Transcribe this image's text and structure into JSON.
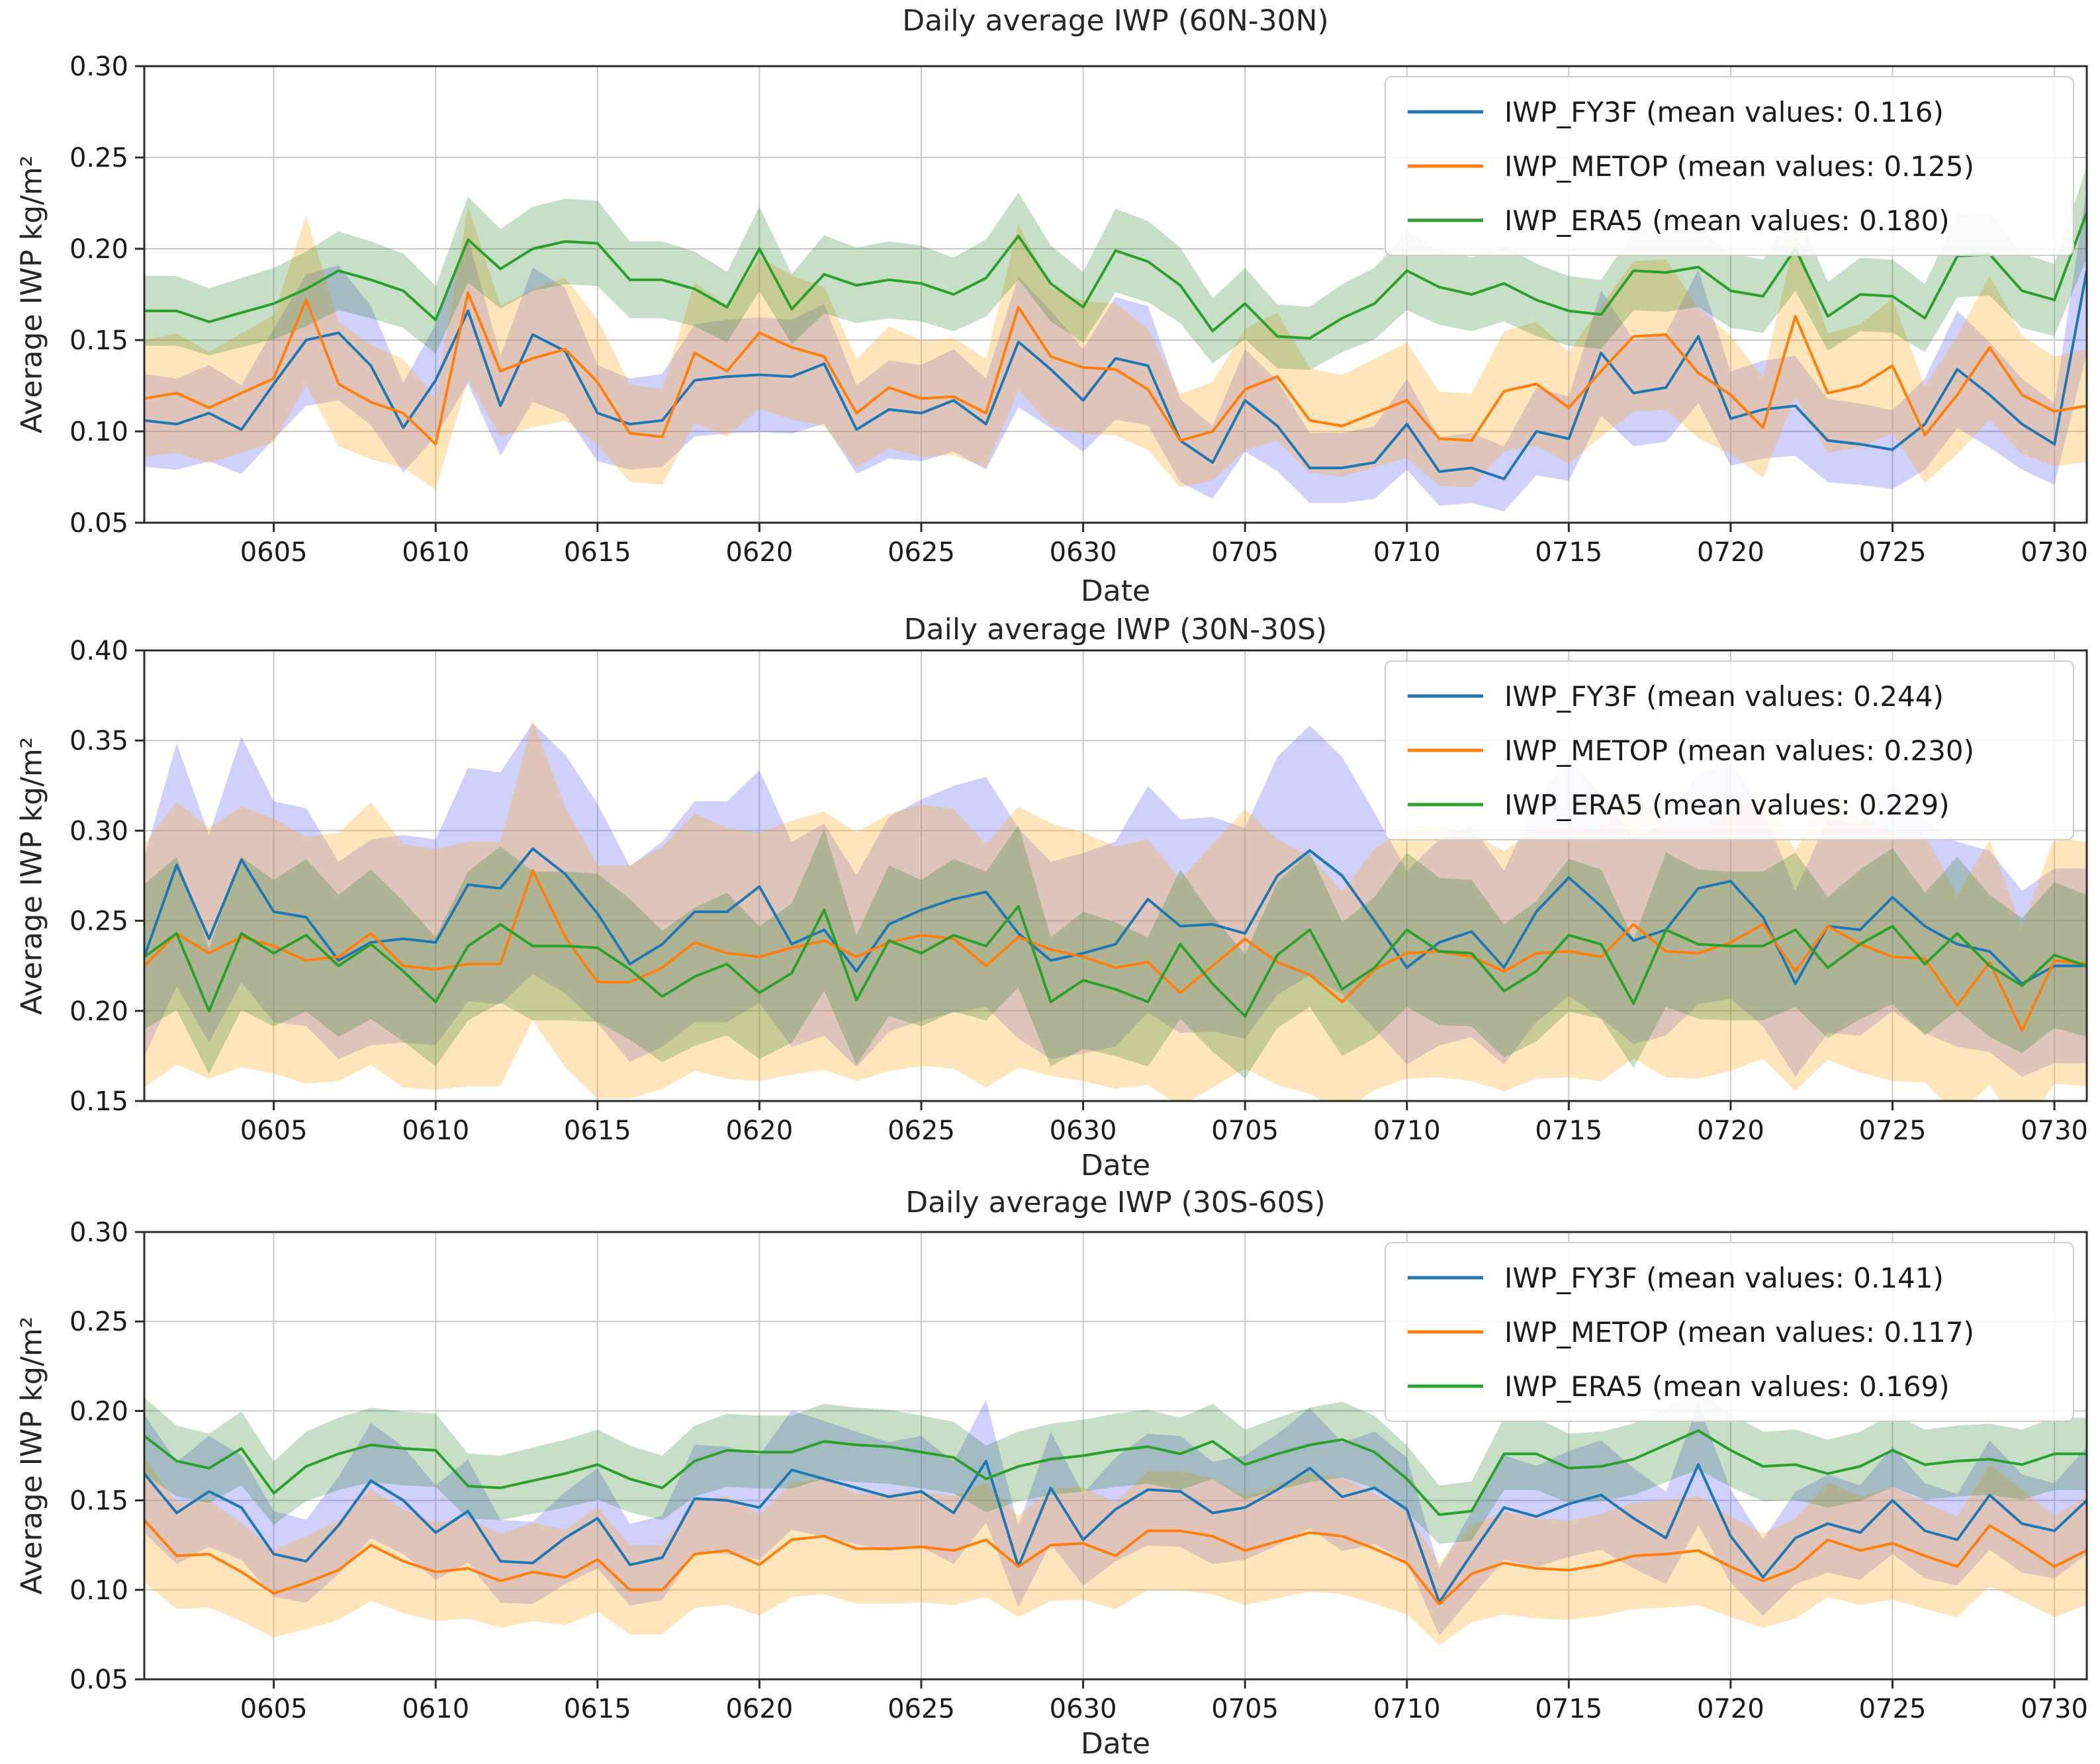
{
  "figure": {
    "background": "#ffffff",
    "xlabel": "Date",
    "ylabel": "Average IWP kg/m²"
  },
  "dates": [
    "0601",
    "0602",
    "0603",
    "0604",
    "0605",
    "0606",
    "0607",
    "0608",
    "0609",
    "0610",
    "0611",
    "0612",
    "0613",
    "0614",
    "0615",
    "0616",
    "0617",
    "0618",
    "0619",
    "0620",
    "0621",
    "0622",
    "0623",
    "0624",
    "0625",
    "0626",
    "0627",
    "0628",
    "0629",
    "0630",
    "0701",
    "0702",
    "0703",
    "0704",
    "0705",
    "0706",
    "0707",
    "0708",
    "0709",
    "0710",
    "0711",
    "0712",
    "0713",
    "0714",
    "0715",
    "0716",
    "0717",
    "0718",
    "0719",
    "0720",
    "0721",
    "0722",
    "0723",
    "0724",
    "0725",
    "0726",
    "0727",
    "0728",
    "0729",
    "0730",
    "0731"
  ],
  "x_ticks": [
    {
      "label": "0605",
      "day_index": 4
    },
    {
      "label": "0610",
      "day_index": 9
    },
    {
      "label": "0615",
      "day_index": 14
    },
    {
      "label": "0620",
      "day_index": 19
    },
    {
      "label": "0625",
      "day_index": 24
    },
    {
      "label": "0630",
      "day_index": 29
    },
    {
      "label": "0705",
      "day_index": 34
    },
    {
      "label": "0710",
      "day_index": 39
    },
    {
      "label": "0715",
      "day_index": 44
    },
    {
      "label": "0720",
      "day_index": 49
    },
    {
      "label": "0725",
      "day_index": 54
    },
    {
      "label": "0730",
      "day_index": 59
    }
  ],
  "chart_data": [
    {
      "type": "line",
      "title": "Daily average IWP (60N-30N)",
      "xlabel": "Date",
      "ylabel": "Average IWP kg/m²",
      "ylim": [
        0.05,
        0.3
      ],
      "ytick_labels": [
        "0.05",
        "0.10",
        "0.15",
        "0.20",
        "0.25",
        "0.30"
      ],
      "grid": true,
      "legend_position": "upper right",
      "series": [
        {
          "name": "IWP_FY3F",
          "label": "IWP_FY3F (mean values: 0.116)",
          "mean": 0.116,
          "color": "#1f77b4",
          "band_color": "rgba(80,80,245,0.27)",
          "band_ratio": 0.24,
          "values": [
            0.106,
            0.104,
            0.11,
            0.101,
            0.126,
            0.15,
            0.154,
            0.136,
            0.102,
            0.128,
            0.166,
            0.114,
            0.153,
            0.144,
            0.11,
            0.104,
            0.106,
            0.128,
            0.13,
            0.131,
            0.13,
            0.137,
            0.101,
            0.112,
            0.11,
            0.117,
            0.104,
            0.149,
            0.134,
            0.117,
            0.14,
            0.136,
            0.095,
            0.083,
            0.117,
            0.103,
            0.08,
            0.08,
            0.083,
            0.104,
            0.078,
            0.08,
            0.074,
            0.1,
            0.096,
            0.143,
            0.121,
            0.124,
            0.152,
            0.107,
            0.112,
            0.114,
            0.095,
            0.093,
            0.09,
            0.104,
            0.134,
            0.12,
            0.104,
            0.093,
            0.188
          ]
        },
        {
          "name": "IWP_METOP",
          "label": "IWP_METOP (mean values: 0.125)",
          "mean": 0.125,
          "color": "#ff7f0e",
          "band_color": "rgba(255,170,30,0.30)",
          "band_ratio": 0.27,
          "values": [
            0.118,
            0.121,
            0.113,
            0.121,
            0.129,
            0.172,
            0.126,
            0.116,
            0.11,
            0.093,
            0.176,
            0.133,
            0.14,
            0.145,
            0.127,
            0.099,
            0.097,
            0.143,
            0.133,
            0.154,
            0.146,
            0.141,
            0.11,
            0.124,
            0.118,
            0.119,
            0.11,
            0.168,
            0.141,
            0.135,
            0.134,
            0.123,
            0.095,
            0.1,
            0.123,
            0.13,
            0.106,
            0.103,
            0.11,
            0.117,
            0.096,
            0.095,
            0.122,
            0.126,
            0.113,
            0.133,
            0.152,
            0.153,
            0.132,
            0.12,
            0.102,
            0.163,
            0.121,
            0.125,
            0.136,
            0.098,
            0.12,
            0.146,
            0.12,
            0.111,
            0.114
          ]
        },
        {
          "name": "IWP_ERA5",
          "label": "IWP_ERA5 (mean values: 0.180)",
          "mean": 0.18,
          "color": "#2ca02c",
          "band_color": "rgba(45,135,45,0.27)",
          "band_ratio": 0.115,
          "values": [
            0.166,
            0.166,
            0.16,
            0.165,
            0.17,
            0.178,
            0.188,
            0.183,
            0.177,
            0.161,
            0.205,
            0.189,
            0.2,
            0.204,
            0.203,
            0.183,
            0.183,
            0.178,
            0.168,
            0.2,
            0.167,
            0.186,
            0.18,
            0.183,
            0.181,
            0.175,
            0.184,
            0.207,
            0.181,
            0.168,
            0.199,
            0.193,
            0.18,
            0.155,
            0.17,
            0.152,
            0.151,
            0.162,
            0.17,
            0.188,
            0.179,
            0.175,
            0.181,
            0.172,
            0.166,
            0.164,
            0.188,
            0.187,
            0.19,
            0.177,
            0.174,
            0.2,
            0.163,
            0.175,
            0.174,
            0.162,
            0.196,
            0.197,
            0.177,
            0.172,
            0.22
          ]
        }
      ]
    },
    {
      "type": "line",
      "title": "Daily average IWP (30N-30S)",
      "xlabel": "Date",
      "ylabel": "Average IWP kg/m²",
      "ylim": [
        0.15,
        0.4
      ],
      "ytick_labels": [
        "0.15",
        "0.20",
        "0.25",
        "0.30",
        "0.35",
        "0.40"
      ],
      "grid": true,
      "legend_position": "upper right",
      "series": [
        {
          "name": "IWP_FY3F",
          "label": "IWP_FY3F (mean values: 0.244)",
          "mean": 0.244,
          "color": "#1f77b4",
          "band_color": "rgba(80,80,245,0.27)",
          "band_ratio": 0.24,
          "values": [
            0.23,
            0.281,
            0.24,
            0.284,
            0.255,
            0.252,
            0.228,
            0.238,
            0.24,
            0.238,
            0.27,
            0.268,
            0.29,
            0.276,
            0.254,
            0.226,
            0.237,
            0.255,
            0.255,
            0.269,
            0.237,
            0.245,
            0.222,
            0.248,
            0.256,
            0.262,
            0.266,
            0.243,
            0.228,
            0.232,
            0.237,
            0.262,
            0.247,
            0.248,
            0.243,
            0.275,
            0.289,
            0.275,
            0.25,
            0.224,
            0.238,
            0.244,
            0.224,
            0.255,
            0.274,
            0.258,
            0.239,
            0.245,
            0.268,
            0.272,
            0.252,
            0.215,
            0.247,
            0.245,
            0.263,
            0.247,
            0.237,
            0.233,
            0.215,
            0.225,
            0.225
          ]
        },
        {
          "name": "IWP_METOP",
          "label": "IWP_METOP (mean values: 0.230)",
          "mean": 0.23,
          "color": "#ff7f0e",
          "band_color": "rgba(255,170,30,0.30)",
          "band_ratio": 0.3,
          "values": [
            0.225,
            0.243,
            0.232,
            0.241,
            0.236,
            0.228,
            0.23,
            0.243,
            0.225,
            0.223,
            0.226,
            0.226,
            0.278,
            0.241,
            0.216,
            0.216,
            0.224,
            0.238,
            0.232,
            0.23,
            0.235,
            0.239,
            0.23,
            0.238,
            0.242,
            0.24,
            0.225,
            0.241,
            0.234,
            0.23,
            0.224,
            0.227,
            0.21,
            0.225,
            0.24,
            0.227,
            0.22,
            0.205,
            0.223,
            0.232,
            0.233,
            0.23,
            0.222,
            0.232,
            0.233,
            0.23,
            0.248,
            0.233,
            0.232,
            0.238,
            0.248,
            0.222,
            0.247,
            0.237,
            0.23,
            0.229,
            0.203,
            0.227,
            0.189,
            0.228,
            0.226
          ]
        },
        {
          "name": "IWP_ERA5",
          "label": "IWP_ERA5 (mean values: 0.229)",
          "mean": 0.229,
          "color": "#2ca02c",
          "band_color": "rgba(45,135,45,0.27)",
          "band_ratio": 0.175,
          "values": [
            0.23,
            0.243,
            0.2,
            0.243,
            0.232,
            0.242,
            0.225,
            0.237,
            0.222,
            0.205,
            0.236,
            0.248,
            0.236,
            0.236,
            0.235,
            0.223,
            0.208,
            0.219,
            0.226,
            0.21,
            0.221,
            0.256,
            0.206,
            0.239,
            0.232,
            0.242,
            0.236,
            0.258,
            0.205,
            0.217,
            0.212,
            0.205,
            0.237,
            0.215,
            0.197,
            0.231,
            0.245,
            0.212,
            0.224,
            0.245,
            0.233,
            0.232,
            0.211,
            0.222,
            0.242,
            0.237,
            0.204,
            0.245,
            0.237,
            0.236,
            0.236,
            0.245,
            0.224,
            0.237,
            0.247,
            0.226,
            0.243,
            0.225,
            0.214,
            0.231,
            0.225
          ]
        }
      ]
    },
    {
      "type": "line",
      "title": "Daily average IWP (30S-60S)",
      "xlabel": "Date",
      "ylabel": "Average IWP kg/m²",
      "ylim": [
        0.05,
        0.3
      ],
      "ytick_labels": [
        "0.05",
        "0.10",
        "0.15",
        "0.20",
        "0.25",
        "0.30"
      ],
      "grid": true,
      "legend_position": "upper right",
      "series": [
        {
          "name": "IWP_FY3F",
          "label": "IWP_FY3F (mean values: 0.141)",
          "mean": 0.141,
          "color": "#1f77b4",
          "band_color": "rgba(80,80,245,0.27)",
          "band_ratio": 0.2,
          "values": [
            0.165,
            0.143,
            0.155,
            0.146,
            0.12,
            0.116,
            0.136,
            0.161,
            0.15,
            0.132,
            0.144,
            0.116,
            0.115,
            0.129,
            0.14,
            0.114,
            0.118,
            0.151,
            0.15,
            0.146,
            0.167,
            0.162,
            0.157,
            0.152,
            0.155,
            0.143,
            0.172,
            0.113,
            0.157,
            0.128,
            0.145,
            0.156,
            0.155,
            0.143,
            0.146,
            0.156,
            0.168,
            0.152,
            0.157,
            0.145,
            0.093,
            0.12,
            0.146,
            0.141,
            0.148,
            0.153,
            0.14,
            0.129,
            0.17,
            0.13,
            0.107,
            0.129,
            0.137,
            0.132,
            0.15,
            0.133,
            0.128,
            0.153,
            0.137,
            0.133,
            0.15
          ]
        },
        {
          "name": "IWP_METOP",
          "label": "IWP_METOP (mean values: 0.117)",
          "mean": 0.117,
          "color": "#ff7f0e",
          "band_color": "rgba(255,170,30,0.30)",
          "band_ratio": 0.25,
          "values": [
            0.139,
            0.119,
            0.12,
            0.11,
            0.098,
            0.104,
            0.111,
            0.125,
            0.116,
            0.11,
            0.112,
            0.105,
            0.11,
            0.107,
            0.117,
            0.1,
            0.1,
            0.12,
            0.122,
            0.114,
            0.128,
            0.13,
            0.123,
            0.123,
            0.124,
            0.122,
            0.128,
            0.113,
            0.125,
            0.126,
            0.119,
            0.133,
            0.133,
            0.13,
            0.122,
            0.127,
            0.132,
            0.13,
            0.123,
            0.115,
            0.092,
            0.109,
            0.115,
            0.112,
            0.111,
            0.114,
            0.119,
            0.12,
            0.122,
            0.113,
            0.105,
            0.112,
            0.128,
            0.122,
            0.126,
            0.119,
            0.113,
            0.136,
            0.125,
            0.113,
            0.122
          ]
        },
        {
          "name": "IWP_ERA5",
          "label": "IWP_ERA5 (mean values: 0.169)",
          "mean": 0.169,
          "color": "#2ca02c",
          "band_color": "rgba(45,135,45,0.27)",
          "band_ratio": 0.115,
          "values": [
            0.186,
            0.172,
            0.168,
            0.179,
            0.154,
            0.169,
            0.176,
            0.181,
            0.179,
            0.178,
            0.158,
            0.157,
            0.161,
            0.165,
            0.17,
            0.162,
            0.157,
            0.172,
            0.178,
            0.177,
            0.177,
            0.183,
            0.181,
            0.18,
            0.177,
            0.174,
            0.162,
            0.169,
            0.173,
            0.175,
            0.178,
            0.18,
            0.176,
            0.183,
            0.17,
            0.176,
            0.181,
            0.184,
            0.177,
            0.162,
            0.142,
            0.144,
            0.176,
            0.176,
            0.168,
            0.169,
            0.173,
            0.181,
            0.189,
            0.178,
            0.169,
            0.17,
            0.165,
            0.169,
            0.178,
            0.17,
            0.172,
            0.173,
            0.17,
            0.176,
            0.176
          ]
        }
      ]
    }
  ],
  "style": {
    "grid_color": "#c9c9c9",
    "spine_color": "#2b2b2b",
    "tick_text_color": "#1a1a1a",
    "legend_border": "#cccccc",
    "legend_fill": "rgba(255,255,255,0.85)"
  }
}
